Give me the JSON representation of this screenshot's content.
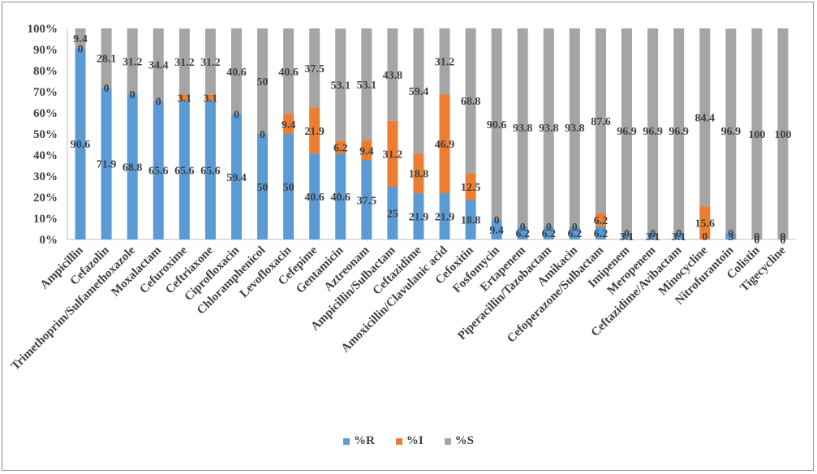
{
  "chart_data": {
    "type": "bar",
    "stacked": true,
    "categories": [
      "Ampicillin",
      "Cefazolin",
      "Trimethoprim/Sulfamethoxazole",
      "Moxalactam",
      "Cefuroxime",
      "Ceftriaxone",
      "Ciprofloxacin",
      "Chloramphenicol",
      "Levofloxacin",
      "Cefepime",
      "Gentamicin",
      "Aztreonam",
      "Ampicillin/Sulbactam",
      "Ceftazidime",
      "Amoxicillin/Clavulanic acid",
      "Cefoxitin",
      "Fosfomycin",
      "Ertapenem",
      "Piperacillin/Tazobactam",
      "Amikacin",
      "Cefoperazone/Sulbactam",
      "Imipenem",
      "Meropenem",
      "Ceftazidime/Avibactam",
      "Minocycline",
      "Nitrofurantoin",
      "Colistin",
      "Tigecycline"
    ],
    "series": [
      {
        "name": "%R",
        "color": "#5b9bd5",
        "values": [
          90.6,
          71.9,
          68.8,
          65.6,
          65.6,
          65.6,
          59.4,
          50,
          50,
          40.6,
          40.6,
          37.5,
          25,
          21.9,
          21.9,
          18.8,
          9.4,
          6.2,
          6.2,
          6.2,
          6.2,
          3.1,
          3.1,
          3.1,
          0,
          3,
          0,
          0
        ]
      },
      {
        "name": "%I",
        "color": "#ed7d31",
        "values": [
          0,
          0,
          0,
          0,
          3.1,
          3.1,
          0,
          0,
          9.4,
          21.9,
          6.2,
          9.4,
          31.2,
          18.8,
          46.9,
          12.5,
          0,
          0,
          0,
          0,
          6.2,
          0,
          0,
          0,
          15.6,
          0,
          0,
          0
        ]
      },
      {
        "name": "%S",
        "color": "#a5a5a5",
        "values": [
          9.4,
          28.1,
          31.2,
          34.4,
          31.2,
          31.2,
          40.6,
          50,
          40.6,
          37.5,
          53.1,
          53.1,
          43.8,
          59.4,
          31.2,
          68.8,
          90.6,
          93.8,
          93.8,
          93.8,
          87.6,
          96.9,
          96.9,
          96.9,
          84.4,
          96.9,
          100,
          100
        ]
      }
    ],
    "y_tick_labels": [
      "0%",
      "10%",
      "20%",
      "30%",
      "40%",
      "50%",
      "60%",
      "70%",
      "80%",
      "90%",
      "100%"
    ],
    "ylim": [
      0,
      100
    ],
    "grid": false,
    "legend_position": "bottom",
    "data_labels": true
  }
}
